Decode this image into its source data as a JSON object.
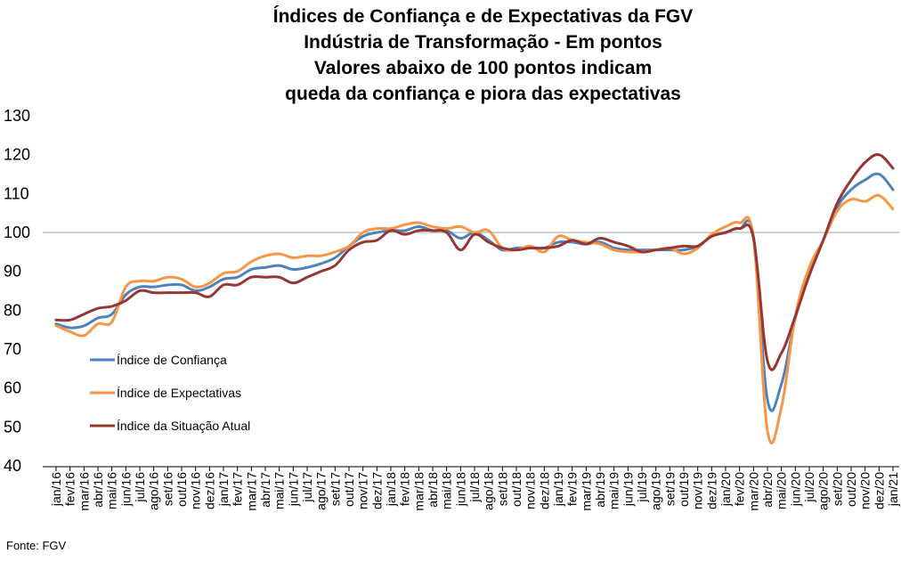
{
  "chart_data": {
    "type": "line",
    "title_lines": [
      "Índices de Confiança e de Expectativas da FGV",
      "Indústria de Transformação - Em pontos",
      "Valores abaixo de 100 pontos indicam",
      "queda da confiança e piora das expectativas"
    ],
    "source": "Fonte: FGV",
    "xlabel": "",
    "ylabel": "",
    "ylim": [
      40,
      130
    ],
    "yticks": [
      40,
      50,
      60,
      70,
      80,
      90,
      100,
      110,
      120,
      130
    ],
    "reference_line": 100,
    "grid": false,
    "legend_position": "left",
    "categories": [
      "jan/16",
      "fev/16",
      "mar/16",
      "abr/16",
      "mai/16",
      "jun/16",
      "jul/16",
      "ago/16",
      "set/16",
      "out/16",
      "nov/16",
      "dez/16",
      "jan/17",
      "fev/17",
      "mar/17",
      "abr/17",
      "mai/17",
      "jun/17",
      "jul/17",
      "ago/17",
      "set/17",
      "out/17",
      "nov/17",
      "dez/17",
      "jan/18",
      "fev/18",
      "mar/18",
      "abr/18",
      "mai/18",
      "jun/18",
      "jul/18",
      "ago/18",
      "set/18",
      "out/18",
      "nov/18",
      "dez/18",
      "jan/19",
      "fev/19",
      "mar/19",
      "abr/19",
      "mai/19",
      "jun/19",
      "jul/19",
      "ago/19",
      "set/19",
      "out/19",
      "nov/19",
      "dez/19",
      "jan/20",
      "fev/20",
      "mar/20",
      "abr/20",
      "mai/20",
      "jun/20",
      "jul/20",
      "ago/20",
      "set/20",
      "out/20",
      "nov/20",
      "dez/20",
      "jan/21"
    ],
    "series": [
      {
        "name": "Índice de Confiança",
        "color": "#4f81bd",
        "values": [
          76.5,
          75.5,
          76.0,
          78.0,
          79.0,
          84.0,
          86.0,
          86.0,
          86.5,
          86.5,
          85.0,
          86.0,
          88.0,
          88.5,
          90.5,
          91.0,
          91.5,
          90.5,
          91.0,
          92.0,
          93.5,
          96.5,
          99.0,
          100.0,
          100.5,
          100.5,
          101.5,
          100.5,
          100.5,
          98.5,
          100.0,
          98.0,
          95.5,
          96.0,
          96.0,
          96.0,
          97.5,
          97.5,
          97.0,
          97.5,
          96.0,
          95.5,
          95.5,
          95.5,
          95.5,
          95.5,
          96.5,
          99.0,
          100.0,
          101.0,
          99.0,
          57.0,
          61.0,
          78.0,
          89.0,
          98.0,
          106.5,
          111.0,
          113.5,
          115.0,
          111.0
        ]
      },
      {
        "name": "Índice de Expectativas",
        "color": "#f79646",
        "values": [
          76.0,
          74.5,
          73.5,
          76.5,
          77.0,
          86.0,
          87.5,
          87.5,
          88.5,
          88.0,
          86.0,
          87.0,
          89.5,
          90.0,
          92.5,
          94.0,
          94.5,
          93.5,
          94.0,
          94.0,
          95.0,
          96.5,
          100.0,
          101.0,
          101.0,
          102.0,
          102.5,
          101.5,
          101.0,
          101.5,
          100.0,
          100.5,
          96.0,
          95.5,
          96.5,
          95.0,
          99.0,
          98.0,
          97.5,
          97.0,
          95.5,
          95.0,
          95.0,
          95.5,
          96.0,
          94.5,
          96.0,
          99.5,
          101.5,
          102.5,
          98.5,
          49.0,
          55.0,
          78.5,
          91.0,
          98.0,
          105.5,
          108.5,
          108.0,
          109.5,
          106.0
        ]
      },
      {
        "name": "Índice da Situação Atual",
        "color": "#953735",
        "values": [
          77.5,
          77.5,
          79.0,
          80.5,
          81.0,
          82.5,
          85.0,
          84.5,
          84.5,
          84.5,
          84.5,
          83.5,
          86.5,
          86.5,
          88.5,
          88.5,
          88.5,
          87.0,
          88.5,
          90.0,
          91.5,
          95.5,
          97.5,
          98.0,
          100.5,
          99.5,
          100.5,
          100.5,
          100.0,
          95.5,
          99.5,
          97.5,
          96.0,
          95.5,
          96.0,
          96.0,
          96.5,
          98.0,
          97.0,
          98.5,
          97.5,
          96.5,
          95.0,
          95.5,
          96.0,
          96.5,
          96.5,
          99.0,
          100.0,
          101.0,
          98.5,
          67.0,
          69.0,
          78.5,
          89.0,
          98.0,
          107.5,
          113.5,
          118.0,
          120.0,
          116.5
        ]
      }
    ]
  }
}
